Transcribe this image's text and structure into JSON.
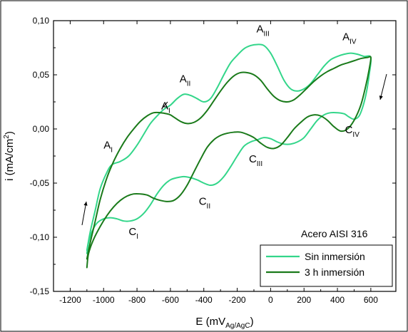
{
  "chart_data": {
    "type": "line",
    "title": "",
    "xlabel": "E (mV",
    "xlabel_sub": "Ag/AgC",
    "xlabel_close": ")",
    "ylabel": "i (mA/cm",
    "ylabel_sup": "2",
    "ylabel_close": ")",
    "xlim": [
      -1300,
      750
    ],
    "ylim": [
      -0.15,
      0.1
    ],
    "x_ticks": [
      -1200,
      -1000,
      -800,
      -600,
      -400,
      -200,
      0,
      200,
      400,
      600
    ],
    "x_tick_labels": [
      "-1200",
      "-1000",
      "-800",
      "-600",
      "-400",
      "-200",
      "0",
      "200",
      "400",
      "600"
    ],
    "y_ticks": [
      -0.15,
      -0.1,
      -0.05,
      0.0,
      0.05,
      0.1
    ],
    "y_tick_labels": [
      "-0,15",
      "-0,10",
      "-0,05",
      "0,00",
      "0,05",
      "0,10"
    ],
    "grid": false,
    "legend_title": "Acero AISI 316",
    "legend_position": "bottom-right",
    "series": [
      {
        "name": "Sin inmersión",
        "color": "#33d68a",
        "x": [
          -1100,
          -1080,
          -1050,
          -1020,
          -980,
          -950,
          -900,
          -850,
          -800,
          -760,
          -720,
          -680,
          -640,
          -600,
          -560,
          -520,
          -480,
          -440,
          -400,
          -360,
          -320,
          -280,
          -240,
          -200,
          -160,
          -120,
          -80,
          -40,
          0,
          40,
          80,
          120,
          160,
          200,
          240,
          280,
          320,
          360,
          400,
          440,
          480,
          520,
          560,
          600,
          590,
          575,
          555,
          530,
          500,
          470,
          440,
          400,
          360,
          320,
          280,
          240,
          200,
          160,
          120,
          80,
          40,
          0,
          -40,
          -80,
          -120,
          -160,
          -200,
          -240,
          -280,
          -320,
          -360,
          -400,
          -440,
          -480,
          -520,
          -560,
          -600,
          -640,
          -680,
          -720,
          -760,
          -800,
          -840,
          -880,
          -920,
          -960,
          -1000,
          -1040,
          -1070,
          -1090,
          -1100
        ],
        "y": [
          -0.112,
          -0.095,
          -0.075,
          -0.055,
          -0.04,
          -0.033,
          -0.03,
          -0.025,
          -0.015,
          -0.005,
          0.005,
          0.012,
          0.018,
          0.022,
          0.028,
          0.032,
          0.031,
          0.028,
          0.025,
          0.028,
          0.038,
          0.05,
          0.061,
          0.068,
          0.074,
          0.077,
          0.078,
          0.077,
          0.07,
          0.058,
          0.045,
          0.037,
          0.035,
          0.037,
          0.042,
          0.05,
          0.058,
          0.064,
          0.067,
          0.069,
          0.07,
          0.069,
          0.067,
          0.066,
          0.05,
          0.035,
          0.022,
          0.012,
          0.009,
          0.011,
          0.014,
          0.015,
          0.015,
          0.013,
          0.008,
          0.0,
          -0.008,
          -0.012,
          -0.014,
          -0.014,
          -0.012,
          -0.009,
          -0.008,
          -0.01,
          -0.012,
          -0.016,
          -0.025,
          -0.035,
          -0.044,
          -0.05,
          -0.052,
          -0.05,
          -0.047,
          -0.045,
          -0.044,
          -0.045,
          -0.047,
          -0.052,
          -0.06,
          -0.07,
          -0.078,
          -0.083,
          -0.085,
          -0.085,
          -0.083,
          -0.082,
          -0.083,
          -0.087,
          -0.095,
          -0.105,
          -0.115
        ]
      },
      {
        "name": "3 h inmersión",
        "color": "#1a7a1a",
        "x": [
          -1100,
          -1080,
          -1050,
          -1020,
          -980,
          -940,
          -900,
          -860,
          -820,
          -780,
          -740,
          -700,
          -660,
          -620,
          -600,
          -580,
          -540,
          -500,
          -460,
          -420,
          -380,
          -340,
          -300,
          -260,
          -220,
          -180,
          -140,
          -100,
          -60,
          -20,
          20,
          60,
          100,
          140,
          180,
          220,
          260,
          300,
          340,
          380,
          420,
          460,
          500,
          540,
          580,
          600,
          590,
          570,
          540,
          500,
          460,
          420,
          380,
          340,
          300,
          260,
          220,
          180,
          140,
          100,
          60,
          20,
          -20,
          -60,
          -100,
          -140,
          -180,
          -220,
          -260,
          -300,
          -340,
          -380,
          -420,
          -460,
          -500,
          -540,
          -580,
          -620,
          -660,
          -700,
          -740,
          -780,
          -820,
          -860,
          -900,
          -940,
          -980,
          -1020,
          -1060,
          -1090,
          -1100
        ],
        "y": [
          -0.12,
          -0.105,
          -0.085,
          -0.065,
          -0.045,
          -0.03,
          -0.018,
          -0.008,
          0.0,
          0.007,
          0.012,
          0.015,
          0.015,
          0.014,
          0.013,
          0.011,
          0.007,
          0.005,
          0.006,
          0.01,
          0.017,
          0.026,
          0.035,
          0.043,
          0.049,
          0.052,
          0.052,
          0.05,
          0.045,
          0.037,
          0.03,
          0.026,
          0.025,
          0.027,
          0.032,
          0.038,
          0.044,
          0.049,
          0.053,
          0.056,
          0.059,
          0.061,
          0.063,
          0.065,
          0.066,
          0.066,
          0.055,
          0.04,
          0.022,
          0.008,
          0.0,
          -0.002,
          0.002,
          0.008,
          0.012,
          0.013,
          0.011,
          0.006,
          0.0,
          -0.008,
          -0.015,
          -0.018,
          -0.017,
          -0.013,
          -0.008,
          -0.005,
          -0.003,
          -0.003,
          -0.004,
          -0.006,
          -0.01,
          -0.017,
          -0.028,
          -0.04,
          -0.052,
          -0.061,
          -0.066,
          -0.067,
          -0.066,
          -0.064,
          -0.061,
          -0.06,
          -0.06,
          -0.062,
          -0.066,
          -0.072,
          -0.08,
          -0.09,
          -0.102,
          -0.115,
          -0.128
        ]
      }
    ],
    "annotations": [
      {
        "base": "A",
        "sub": "I",
        "x": -1000,
        "y": -0.018
      },
      {
        "base": "A",
        "sub": "I",
        "x": -655,
        "y": 0.018
      },
      {
        "base": "A",
        "sub": "II",
        "x": -545,
        "y": 0.043
      },
      {
        "base": "A",
        "sub": "III",
        "x": -85,
        "y": 0.089
      },
      {
        "base": "A",
        "sub": "IV",
        "x": 430,
        "y": 0.082
      },
      {
        "base": "C",
        "sub": "I",
        "x": -850,
        "y": -0.098
      },
      {
        "base": "C",
        "sub": "II",
        "x": -430,
        "y": -0.07
      },
      {
        "base": "C",
        "sub": "III",
        "x": -130,
        "y": -0.031
      },
      {
        "base": "C",
        "sub": "IV",
        "x": 445,
        "y": -0.004
      }
    ]
  }
}
